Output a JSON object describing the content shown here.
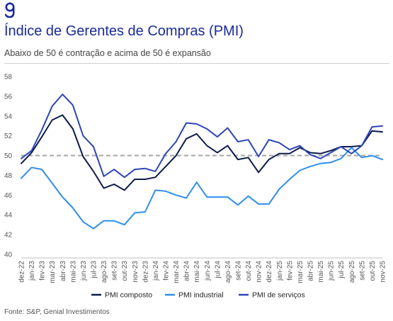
{
  "header": {
    "title": "Índice de Gerentes de Compras (PMI)",
    "subtitle": "Abaixo de 50 é contração e acima de 50 é expansão",
    "source": "Fonte: S&P, Genial Investimentos",
    "brand_color": "#1a2a9c"
  },
  "chart_data": {
    "type": "line",
    "title": "Índice de Gerentes de Compras (PMI)",
    "subtitle": "Abaixo de 50 é contração e acima de 50 é expansão",
    "xlabel": "",
    "ylabel": "",
    "ylim": [
      40,
      58
    ],
    "yticks": [
      40,
      42,
      44,
      46,
      48,
      50,
      52,
      54,
      56,
      58
    ],
    "grid": false,
    "legend_position": "bottom",
    "reference_line": {
      "y": 50,
      "style": "dashed",
      "color": "#a6a6a6"
    },
    "categories": [
      "dez-22",
      "jan-23",
      "fev-23",
      "mar-23",
      "abr-23",
      "mai-23",
      "jun-23",
      "jul-23",
      "ago-23",
      "set-23",
      "out-23",
      "nov-23",
      "dez-23",
      "jan-24",
      "fev-24",
      "mar-24",
      "abr-24",
      "mai-24",
      "jun-24",
      "jul-24",
      "ago-24",
      "set-24",
      "out-24",
      "nov-24",
      "dez-24",
      "jan-25",
      "fev-25",
      "mar-25",
      "abr-25",
      "mai-25",
      "jun-25",
      "jul-25",
      "ago-25",
      "set-25",
      "out-25",
      "nov-25"
    ],
    "series": [
      {
        "name": "PMI composto",
        "color": "#0d1b4c",
        "values": [
          49.2,
          50.3,
          51.9,
          53.6,
          54.1,
          52.7,
          49.9,
          48.4,
          46.7,
          47.1,
          46.5,
          47.6,
          47.6,
          47.8,
          48.9,
          50.0,
          51.7,
          52.2,
          51.0,
          50.3,
          51.0,
          49.6,
          49.8,
          48.3,
          49.6,
          50.2,
          50.2,
          50.8,
          50.3,
          50.2,
          50.5,
          50.9,
          50.9,
          51.0,
          52.5,
          52.4
        ]
      },
      {
        "name": "PMI industrial",
        "color": "#2f8ef0",
        "values": [
          47.7,
          48.8,
          48.6,
          47.2,
          45.8,
          44.7,
          43.3,
          42.6,
          43.4,
          43.4,
          43.0,
          44.2,
          44.3,
          46.5,
          46.4,
          46.0,
          45.7,
          47.3,
          45.8,
          45.8,
          45.8,
          45.0,
          45.9,
          45.1,
          45.1,
          46.6,
          47.6,
          48.5,
          48.9,
          49.2,
          49.3,
          49.7,
          50.8,
          49.8,
          50.0,
          49.6
        ]
      },
      {
        "name": "PMI de serviços",
        "color": "#2d45b8",
        "values": [
          49.7,
          50.5,
          52.6,
          55.0,
          56.2,
          55.1,
          52.0,
          50.9,
          47.9,
          48.6,
          47.8,
          48.6,
          48.7,
          48.4,
          50.2,
          51.4,
          53.3,
          53.2,
          52.7,
          51.9,
          52.8,
          51.4,
          51.6,
          49.9,
          51.6,
          51.3,
          50.6,
          51.0,
          50.1,
          49.7,
          50.3,
          50.9,
          50.2,
          51.0,
          52.9,
          53.0
        ]
      }
    ]
  }
}
